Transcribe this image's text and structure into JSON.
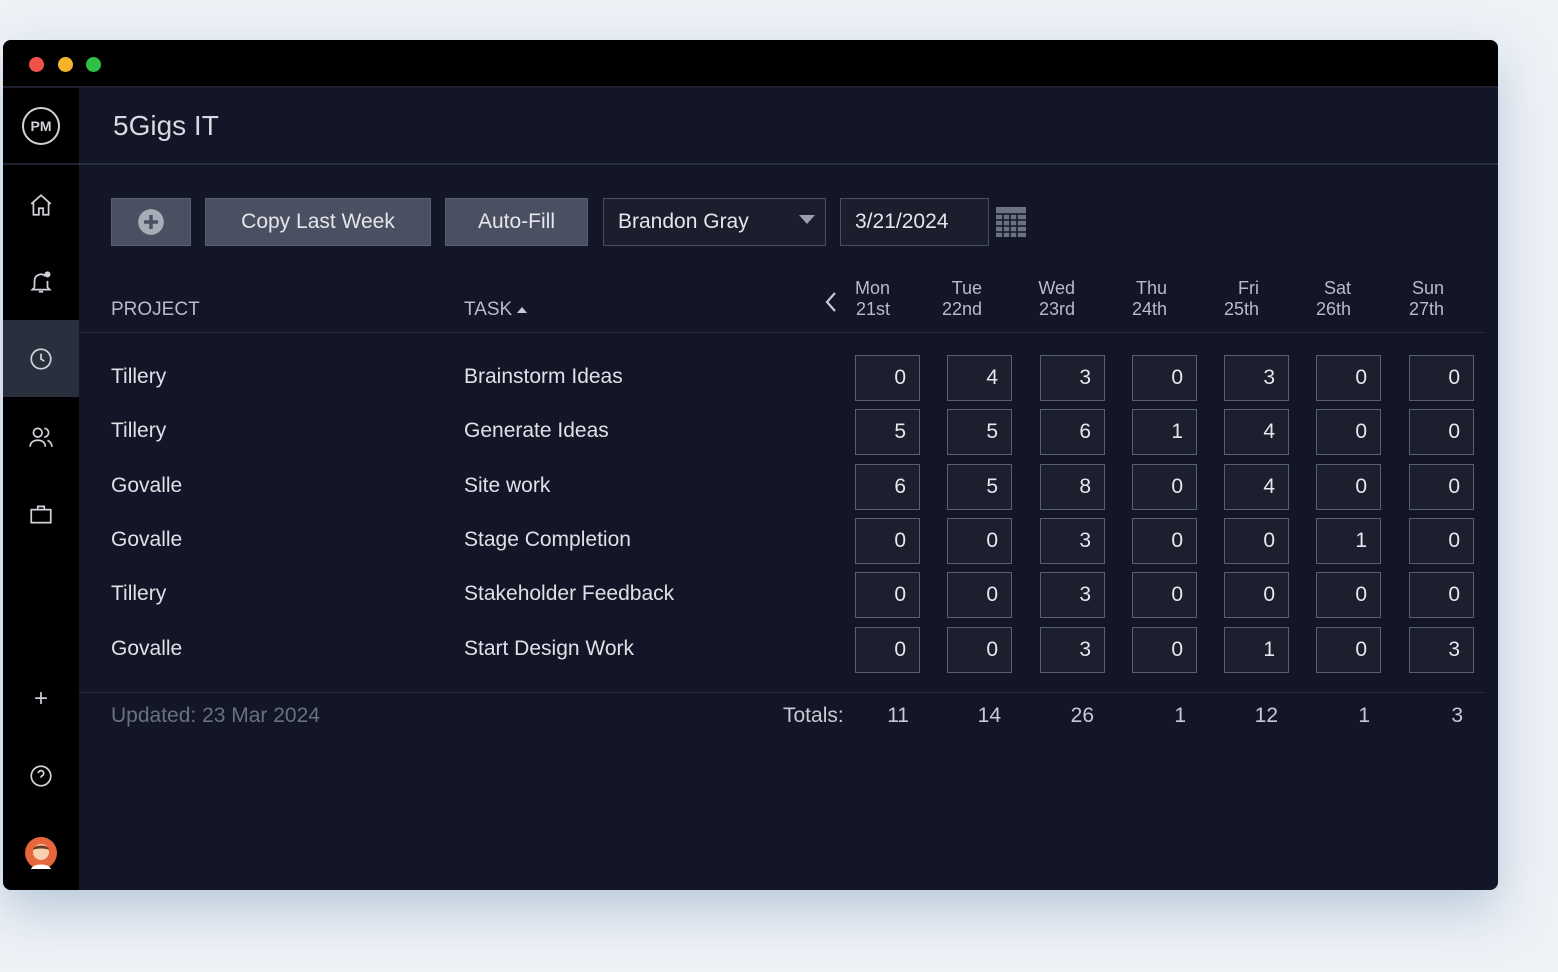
{
  "app": {
    "logo": "PM",
    "title": "5Gigs IT"
  },
  "sidebar": {
    "items": [
      {
        "name": "home",
        "icon": "home-icon"
      },
      {
        "name": "notifications",
        "icon": "bell-icon"
      },
      {
        "name": "timesheet",
        "icon": "clock-icon",
        "active": true
      },
      {
        "name": "team",
        "icon": "users-icon"
      },
      {
        "name": "projects",
        "icon": "briefcase-icon"
      },
      {
        "name": "add",
        "icon": "plus-icon"
      },
      {
        "name": "help",
        "icon": "help-icon"
      },
      {
        "name": "profile",
        "icon": "avatar-icon"
      }
    ]
  },
  "toolbar": {
    "add_icon": "plus-circle-icon",
    "copy_label": "Copy Last Week",
    "autofill_label": "Auto-Fill",
    "user": "Brandon Gray",
    "date": "3/21/2024"
  },
  "table": {
    "headers": {
      "project": "PROJECT",
      "task": "TASK"
    },
    "days": [
      {
        "d": "Mon",
        "n": "21st"
      },
      {
        "d": "Tue",
        "n": "22nd"
      },
      {
        "d": "Wed",
        "n": "23rd"
      },
      {
        "d": "Thu",
        "n": "24th"
      },
      {
        "d": "Fri",
        "n": "25th"
      },
      {
        "d": "Sat",
        "n": "26th"
      },
      {
        "d": "Sun",
        "n": "27th"
      }
    ],
    "rows": [
      {
        "project": "Tillery",
        "task": "Brainstorm Ideas",
        "hours": [
          "0",
          "4",
          "3",
          "0",
          "3",
          "0",
          "0"
        ]
      },
      {
        "project": "Tillery",
        "task": "Generate Ideas",
        "hours": [
          "5",
          "5",
          "6",
          "1",
          "4",
          "0",
          "0"
        ]
      },
      {
        "project": "Govalle",
        "task": "Site work",
        "hours": [
          "6",
          "5",
          "8",
          "0",
          "4",
          "0",
          "0"
        ]
      },
      {
        "project": "Govalle",
        "task": "Stage Completion",
        "hours": [
          "0",
          "0",
          "3",
          "0",
          "0",
          "1",
          "0"
        ]
      },
      {
        "project": "Tillery",
        "task": "Stakeholder Feedback",
        "hours": [
          "0",
          "0",
          "3",
          "0",
          "0",
          "0",
          "0"
        ]
      },
      {
        "project": "Govalle",
        "task": "Start Design Work",
        "hours": [
          "0",
          "0",
          "3",
          "0",
          "1",
          "0",
          "3"
        ]
      }
    ],
    "updated": "Updated: 23 Mar 2024",
    "totals_label": "Totals:",
    "totals": [
      "11",
      "14",
      "26",
      "1",
      "12",
      "1",
      "3"
    ]
  },
  "colors": {
    "window_bg": "#121626",
    "sidebar_bg": "#000000",
    "button_bg": "#4a5061"
  }
}
